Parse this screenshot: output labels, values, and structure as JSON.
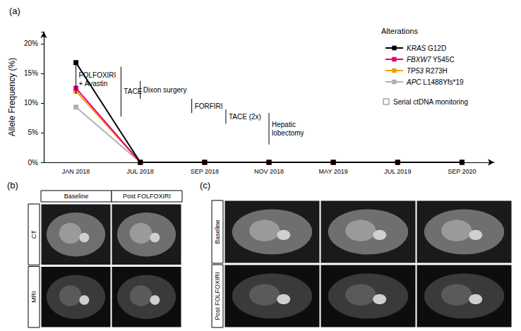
{
  "chart_data": {
    "type": "line",
    "title": "(a)",
    "y_label": "Allele Frequency (%)",
    "x": [
      "JAN 2018",
      "JUL 2018",
      "SEP 2018",
      "NOV 2018",
      "MAY 2019",
      "JUL 2019",
      "SEP 2020"
    ],
    "series": [
      {
        "name": "KRAS G12D",
        "color": "#000000",
        "values": [
          16.8,
          0,
          0,
          0,
          0,
          0,
          0
        ]
      },
      {
        "name": "FBXW7 Y545C",
        "color": "#e6007e",
        "values": [
          12.5,
          0,
          0,
          0,
          0,
          0,
          0
        ]
      },
      {
        "name": "TP53 R273H",
        "color": "#f39c12",
        "values": [
          12.0,
          0,
          0,
          0,
          0,
          0,
          0
        ]
      },
      {
        "name": "APC L1488Yfs*19",
        "color": "#b0b0b0",
        "values": [
          9.3,
          0,
          0,
          0,
          0,
          0,
          0
        ]
      }
    ],
    "ylim": [
      0,
      22
    ],
    "yticks": [
      {
        "value": 0,
        "label": "0%"
      },
      {
        "value": 5,
        "label": "5%"
      },
      {
        "value": 10,
        "label": "10%"
      },
      {
        "value": 15,
        "label": "15%"
      },
      {
        "value": 20,
        "label": "20%"
      }
    ],
    "grid": false,
    "legend": "top-right",
    "legend_title": "Alterations",
    "marker": "square",
    "marker_note": "Serial ctDNA monitoring",
    "annotations": [
      {
        "text": "FOLFOXIRI\n+ Avastin",
        "x": 0.0,
        "y": [
          16.5,
          11.5
        ]
      },
      {
        "text": "TACE",
        "x": 0.7,
        "y": [
          16.1,
          7.7
        ]
      },
      {
        "text": "Dixon surgery",
        "x": 1.0,
        "y": [
          13.7,
          10.7
        ]
      },
      {
        "text": "FORFIRI",
        "x": 1.8,
        "y": [
          10.7,
          8.3
        ]
      },
      {
        "text": "TACE (2x)",
        "x": 2.33,
        "y": [
          8.9,
          6.5
        ]
      },
      {
        "text": "Hepatic\nlobectomy",
        "x": 3.0,
        "y": [
          8.3,
          3.0
        ]
      }
    ]
  },
  "panels": [
    {
      "label": "(b)",
      "columns": [
        "Baseline",
        "Post FOLFOXIRI"
      ],
      "rows": [
        {
          "label": "CT",
          "images": 2
        },
        {
          "label": "MRI",
          "images": 2
        }
      ]
    },
    {
      "label": "(c)",
      "columns": [],
      "rows": [
        {
          "label": "Baseline",
          "images": 3
        },
        {
          "label": "Post FOLFOXIRI",
          "images": 3
        }
      ]
    }
  ]
}
